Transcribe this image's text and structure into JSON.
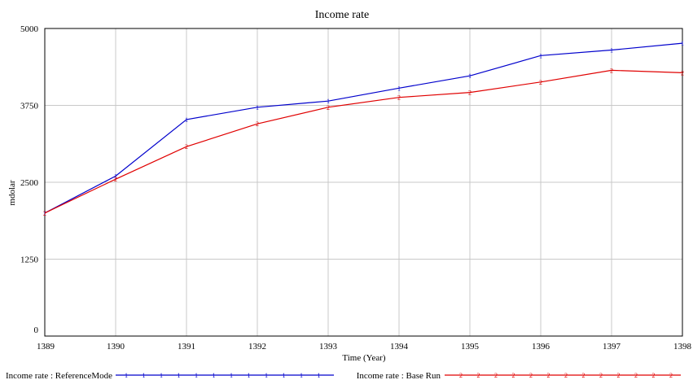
{
  "chart_data": {
    "type": "line",
    "title": "Income rate",
    "xlabel": "Time (Year)",
    "ylabel": "mdolar",
    "x": [
      1389,
      1390,
      1391,
      1392,
      1393,
      1394,
      1395,
      1396,
      1397,
      1398
    ],
    "xlim": [
      1389,
      1398
    ],
    "ylim": [
      0,
      5000
    ],
    "yticks": [
      0,
      1250,
      2500,
      3750,
      5000
    ],
    "grid": true,
    "legend_position": "bottom",
    "series": [
      {
        "name": "Income rate : ReferenceMode",
        "marker": "1",
        "color": "#0000cc",
        "values": [
          2000,
          2600,
          3520,
          3720,
          3820,
          4030,
          4230,
          4560,
          4650,
          4760
        ]
      },
      {
        "name": "Income rate : Base Run",
        "marker": "2",
        "color": "#e00000",
        "values": [
          2000,
          2550,
          3080,
          3450,
          3720,
          3880,
          3960,
          4130,
          4320,
          4280
        ]
      }
    ]
  }
}
